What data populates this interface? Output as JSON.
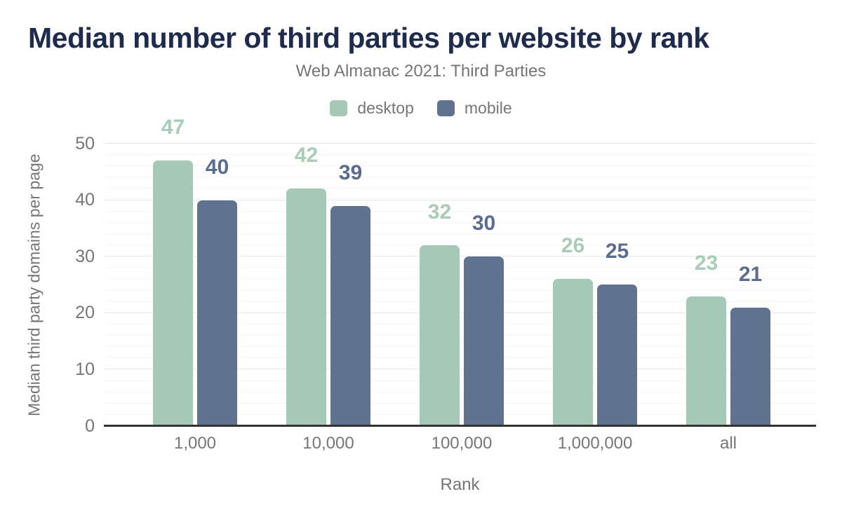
{
  "chart_data": {
    "type": "bar",
    "title": "Median number of third parties per website by rank",
    "subtitle": "Web Almanac 2021: Third Parties",
    "xlabel": "Rank",
    "ylabel": "Median third party domains per page",
    "categories": [
      "1,000",
      "10,000",
      "100,000",
      "1,000,000",
      "all"
    ],
    "series": [
      {
        "name": "desktop",
        "color": "#a6c9b7",
        "label_color": "#a9cbb9",
        "values": [
          47,
          42,
          32,
          26,
          23
        ]
      },
      {
        "name": "mobile",
        "color": "#5f7290",
        "label_color": "#5a6d8e",
        "values": [
          40,
          39,
          30,
          25,
          21
        ]
      }
    ],
    "ylim": [
      0,
      50
    ],
    "y_ticks": [
      "0",
      "10",
      "20",
      "30",
      "40",
      "50"
    ],
    "grid": {
      "minor_step": 2,
      "major_step": 10,
      "visible": true
    },
    "legend_position": "top-center",
    "colors": {
      "title": "#1e2b4d",
      "axis_text": "#767676",
      "axis_line": "#333333",
      "gridline_major": "#e9e9e9",
      "gridline_minor": "#f6f6f6",
      "background": "#ffffff"
    }
  }
}
